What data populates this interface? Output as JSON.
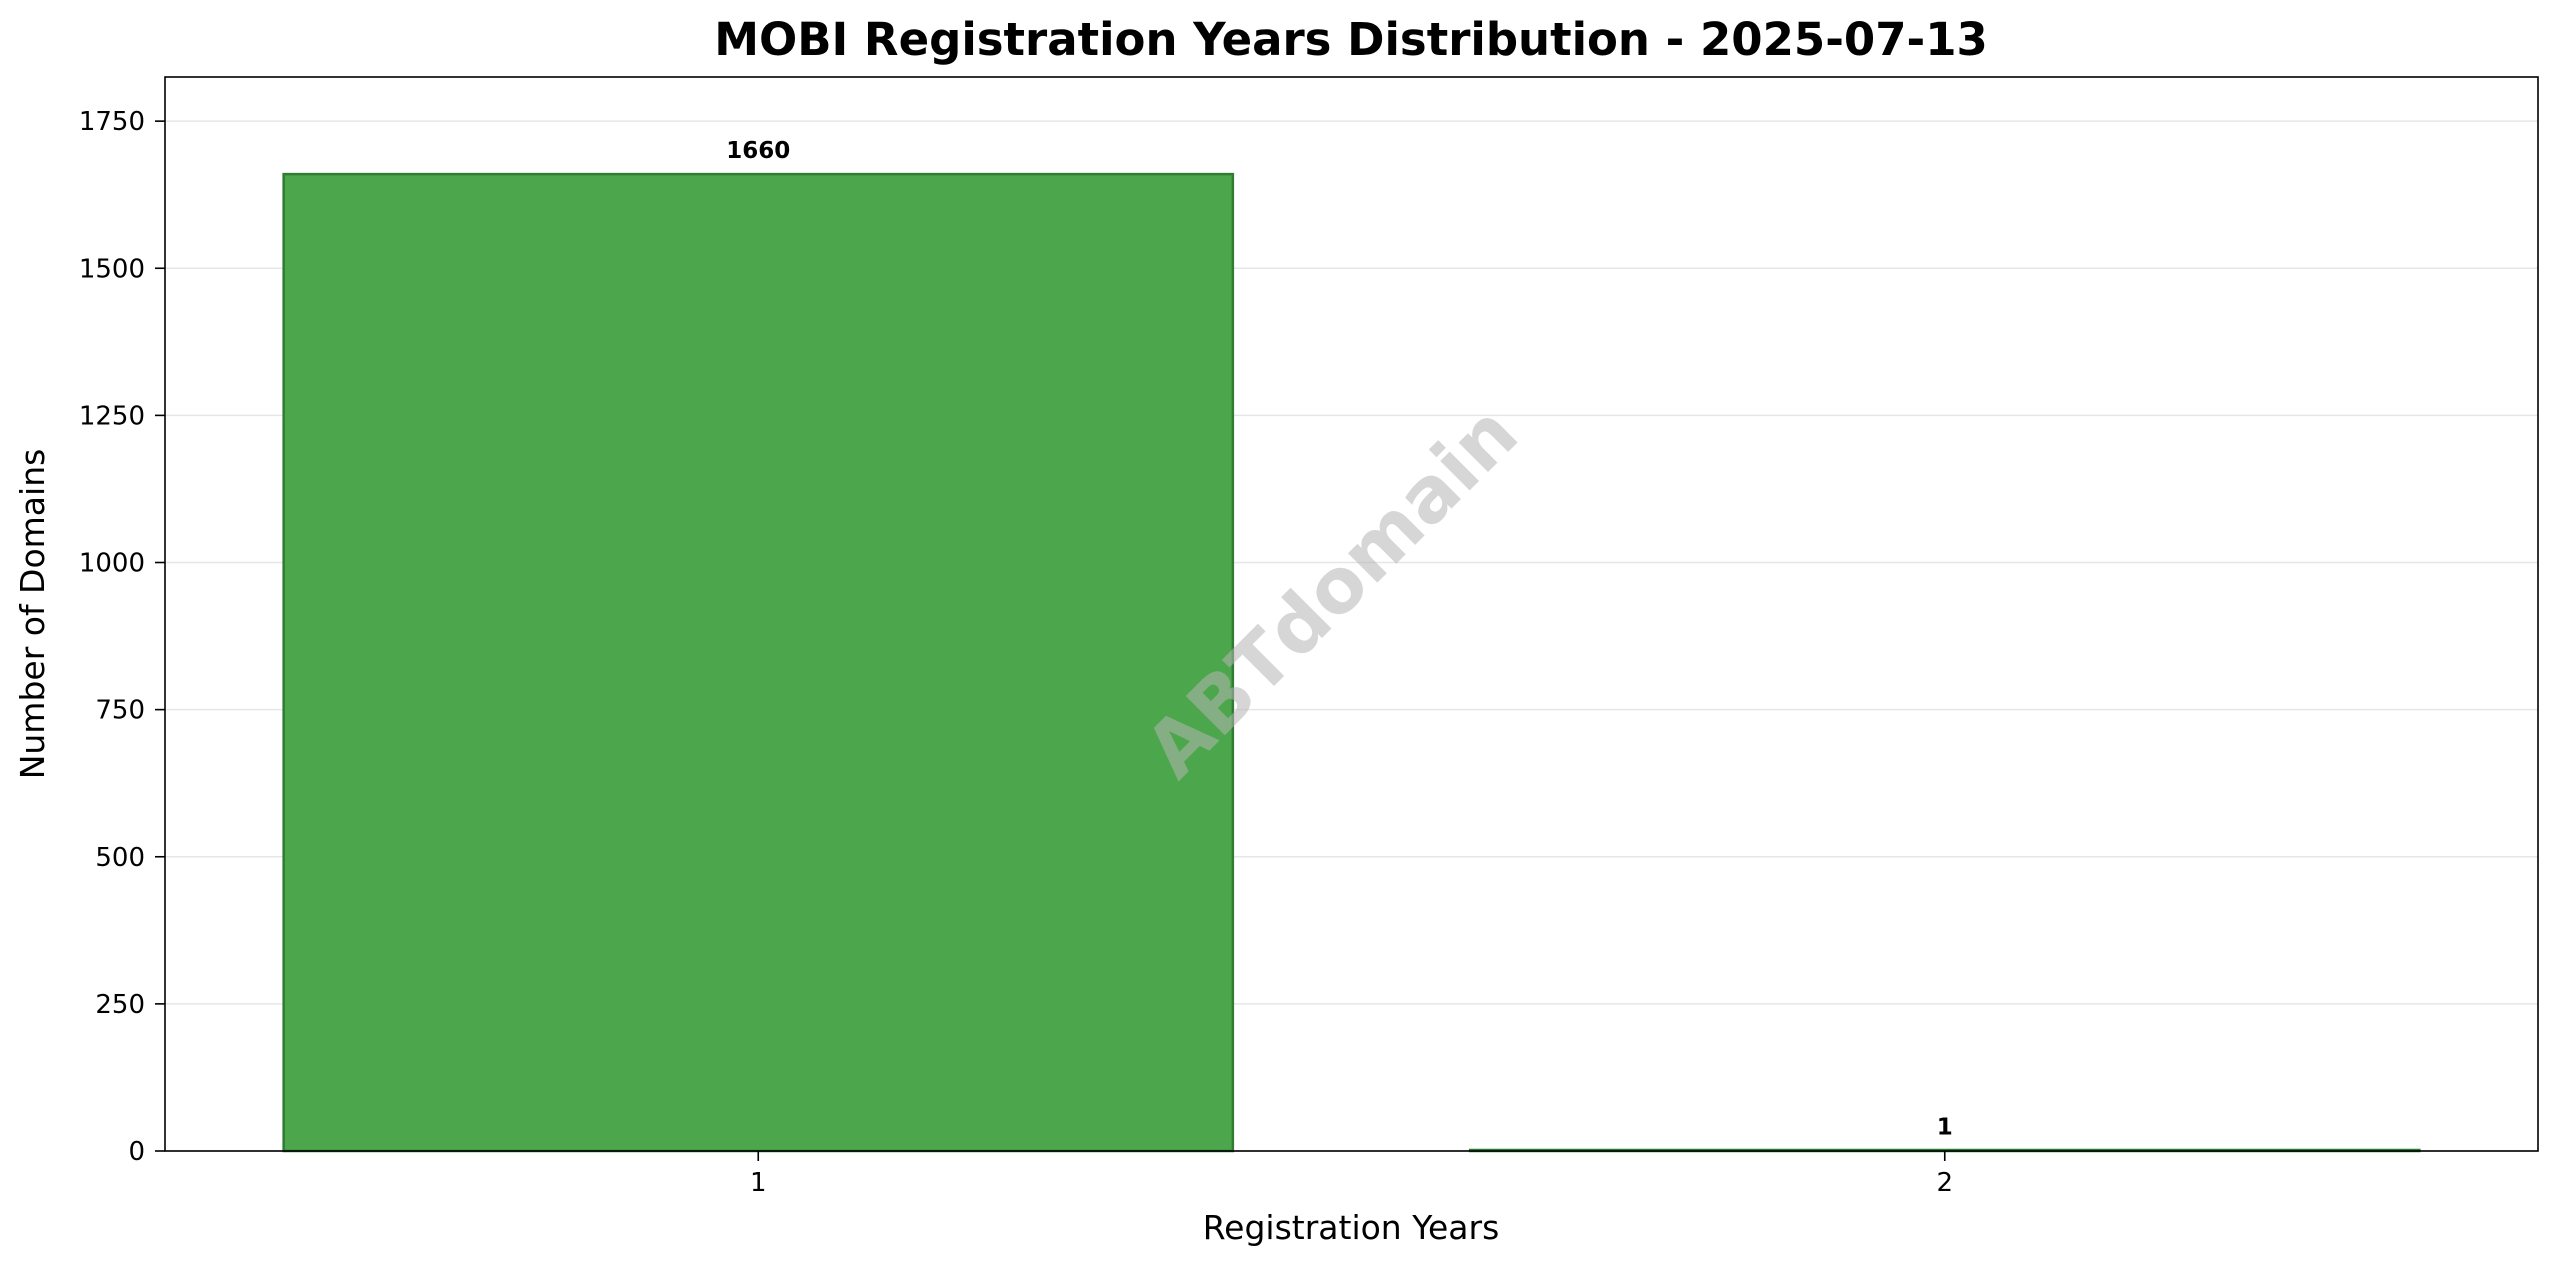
{
  "chart_data": {
    "type": "bar",
    "title": "MOBI Registration Years Distribution - 2025-07-13",
    "xlabel": "Registration Years",
    "ylabel": "Number of Domains",
    "categories": [
      "1",
      "2"
    ],
    "values": [
      1660,
      1
    ],
    "data_labels": [
      "1660",
      "1"
    ],
    "ylim": [
      0,
      1825
    ],
    "yticks": [
      0,
      250,
      500,
      750,
      1000,
      1250,
      1500,
      1750
    ],
    "grid": "horizontal",
    "bar_color": "#4ca64c",
    "bar_edge_color": "#2e7d32",
    "watermark": "ABTdomain"
  }
}
